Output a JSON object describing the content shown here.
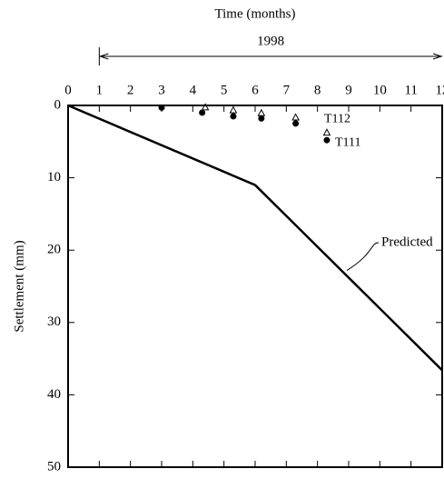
{
  "chart_data": {
    "type": "line",
    "xlabel": "Time (months)",
    "ylabel": "Settlement (mm)",
    "annotations": [
      {
        "text": "1998",
        "x": [
          1,
          12
        ]
      }
    ],
    "xlim": [
      0,
      12
    ],
    "xticks": [
      0,
      1,
      2,
      3,
      4,
      5,
      6,
      7,
      8,
      9,
      10,
      11,
      12
    ],
    "ylim": [
      0,
      50
    ],
    "yticks": [
      0,
      10,
      20,
      30,
      40,
      50
    ],
    "y_inverted": true,
    "x_axis_top": true,
    "series": [
      {
        "name": "Predicted",
        "color": "#000000",
        "marker": "none",
        "x": [
          0,
          6,
          12
        ],
        "values": [
          0,
          11,
          36.6
        ]
      },
      {
        "name": "T112",
        "color": "#000000",
        "marker": "triangle",
        "x": [
          4.4,
          5.3,
          6.2,
          7.3,
          8.3
        ],
        "values": [
          0.3,
          0.7,
          1.1,
          1.7,
          3.8
        ]
      },
      {
        "name": "T111",
        "color": "#000000",
        "marker": "circle",
        "x": [
          3,
          4.3,
          5.3,
          6.2,
          7.3,
          8.3
        ],
        "values": [
          0.3,
          1,
          1.5,
          1.8,
          2.5,
          4.8
        ]
      }
    ]
  }
}
